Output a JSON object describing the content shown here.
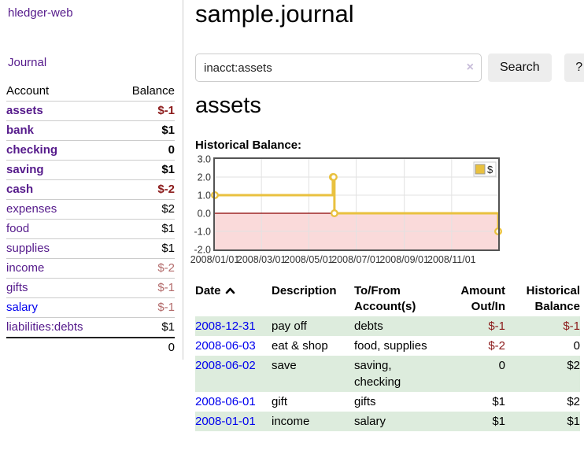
{
  "app": {
    "title": "hledger-web",
    "nav_journal": "Journal"
  },
  "sidebar": {
    "accounts": {
      "header": {
        "account": "Account",
        "balance": "Balance"
      },
      "rows": [
        {
          "name": "assets",
          "balance": "$-1"
        },
        {
          "name": "bank",
          "balance": "$1"
        },
        {
          "name": "checking",
          "balance": "0"
        },
        {
          "name": "saving",
          "balance": "$1"
        },
        {
          "name": "cash",
          "balance": "$-2"
        },
        {
          "name": "expenses",
          "balance": "$2"
        },
        {
          "name": "food",
          "balance": "$1"
        },
        {
          "name": "supplies",
          "balance": "$1"
        },
        {
          "name": "income",
          "balance": "$-2"
        },
        {
          "name": "gifts",
          "balance": "$-1"
        },
        {
          "name": "salary",
          "balance": "$-1"
        },
        {
          "name": "liabilities:debts",
          "balance": "$1"
        }
      ],
      "total": "0"
    }
  },
  "main": {
    "title": "sample.journal",
    "search": {
      "value": "inacct:assets",
      "clear": "×",
      "submit": "Search",
      "help": "?"
    },
    "account_heading": "assets",
    "chart_heading": "Historical Balance:"
  },
  "chart_data": {
    "type": "line",
    "step": true,
    "title": "Historical Balance",
    "series": [
      {
        "name": "$",
        "color": "#e9c13f",
        "points": [
          {
            "date": "2008-01-01",
            "value": 1
          },
          {
            "date": "2008-06-01",
            "value": 2
          },
          {
            "date": "2008-06-02",
            "value": 2
          },
          {
            "date": "2008-06-03",
            "value": 0
          },
          {
            "date": "2008-12-31",
            "value": -1
          }
        ]
      }
    ],
    "x_ticks": [
      "2008/01/01",
      "2008/03/01",
      "2008/05/01",
      "2008/07/01",
      "2008/09/01",
      "2008/11/01"
    ],
    "y_ticks": [
      3.0,
      2.0,
      1.0,
      0.0,
      -1.0,
      -2.0
    ],
    "ylim": [
      -2,
      3
    ],
    "xlim": [
      "2008-01-01",
      "2008-12-31"
    ],
    "grid": true,
    "legend_position": "top-right",
    "legend": {
      "label": "$",
      "swatch_color": "#e9c13f"
    },
    "negative_region_color": "#fadada",
    "zero_line_color": "#8b0000"
  },
  "register": {
    "columns": {
      "date": "Date",
      "description": "Description",
      "accounts": "To/From Account(s)",
      "amount": "Amount Out/In",
      "balance": "Historical Balance"
    },
    "rows": [
      {
        "date": "2008-12-31",
        "description": "pay off",
        "accounts": "debts",
        "amount": "$-1",
        "balance": "$-1"
      },
      {
        "date": "2008-06-03",
        "description": "eat & shop",
        "accounts": "food, supplies",
        "amount": "$-2",
        "balance": "0"
      },
      {
        "date": "2008-06-02",
        "description": "save",
        "accounts": "saving, checking",
        "amount": "0",
        "balance": "$2"
      },
      {
        "date": "2008-06-01",
        "description": "gift",
        "accounts": "gifts",
        "amount": "$1",
        "balance": "$2"
      },
      {
        "date": "2008-01-01",
        "description": "income",
        "accounts": "salary",
        "amount": "$1",
        "balance": "$1"
      }
    ]
  },
  "colors": {
    "link_visited": "#551a8b",
    "link_unvisited": "#0000ee",
    "negative": "#8b1a1a",
    "negative_muted": "#b36b6b",
    "row_highlight": "#ddecdd",
    "chart_line": "#e9c13f",
    "negative_region": "#fadada",
    "zero_line": "#8b0000",
    "chart_border": "#545454"
  }
}
